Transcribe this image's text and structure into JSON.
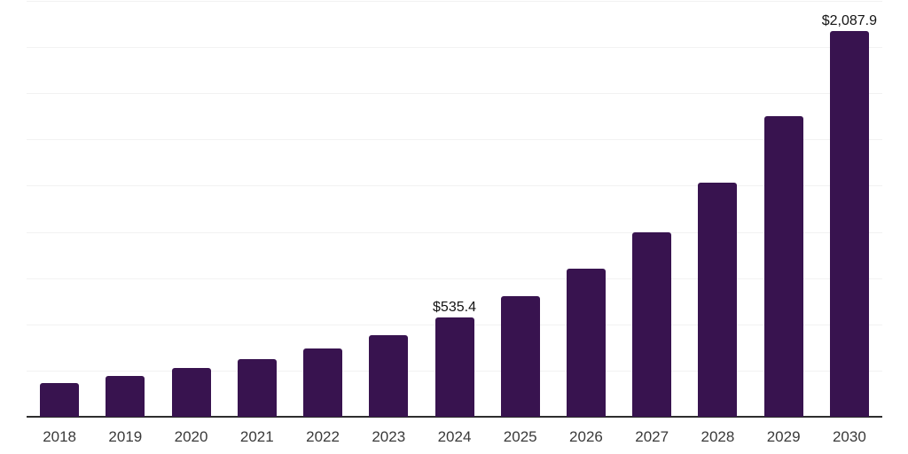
{
  "chart_data": {
    "type": "bar",
    "title": "",
    "xlabel": "",
    "ylabel": "",
    "categories": [
      "2018",
      "2019",
      "2020",
      "2021",
      "2022",
      "2023",
      "2024",
      "2025",
      "2026",
      "2027",
      "2028",
      "2029",
      "2030"
    ],
    "values": [
      182,
      219,
      264,
      313,
      370,
      440,
      535.4,
      653,
      803,
      999,
      1266,
      1626,
      2087.9
    ],
    "point_labels": [
      "",
      "",
      "",
      "",
      "",
      "",
      "$535.4",
      "",
      "",
      "",
      "",
      "",
      "$2,087.9"
    ],
    "ylim": [
      0,
      2250
    ],
    "grid_interval": 250,
    "grid": "horizontal",
    "legend": false,
    "y_axis_labels_visible": false,
    "value_prefix": "$",
    "colors": {
      "bar": "#38134F",
      "gridline": "#F2F2F2",
      "axis_line": "#2E2E2E",
      "x_tick_label": "#3A3A3A",
      "value_label": "#141414",
      "background": "#FFFFFF"
    }
  }
}
